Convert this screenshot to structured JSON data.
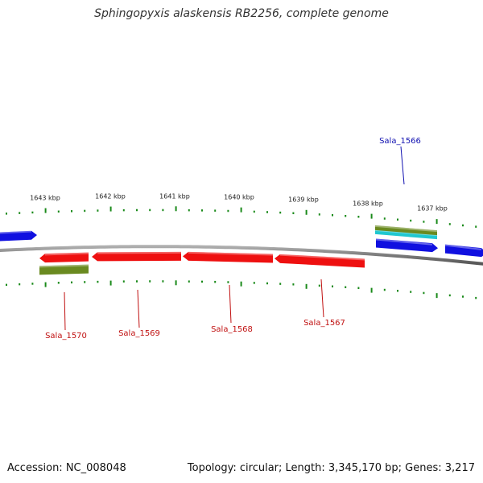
{
  "title": "Sphingopyxis alaskensis RB2256, complete genome",
  "footer": {
    "accession": "Accession: NC_008048",
    "summary": "Topology: circular; Length: 3,345,170 bp; Genes: 3,217"
  },
  "colors": {
    "backbone": "#8a8a8a",
    "forward_gene": "#1010e0",
    "reverse_gene": "#ee1010",
    "rna_feature": "#6a8a20",
    "misc_feature": "#20c8d0",
    "ticks": "#1a8a1a",
    "label_forward": "#1010b0",
    "label_reverse": "#c01010"
  },
  "ruler": {
    "labels": [
      "1643 kbp",
      "1642 kbp",
      "1641 kbp",
      "1640 kbp",
      "1639 kbp",
      "1638 kbp",
      "1637 kbp"
    ]
  },
  "genes": [
    {
      "name": "Sala_1566",
      "strand": "forward"
    },
    {
      "name": "Sala_1567",
      "strand": "reverse"
    },
    {
      "name": "Sala_1568",
      "strand": "reverse"
    },
    {
      "name": "Sala_1569",
      "strand": "reverse"
    },
    {
      "name": "Sala_1570",
      "strand": "reverse"
    }
  ]
}
